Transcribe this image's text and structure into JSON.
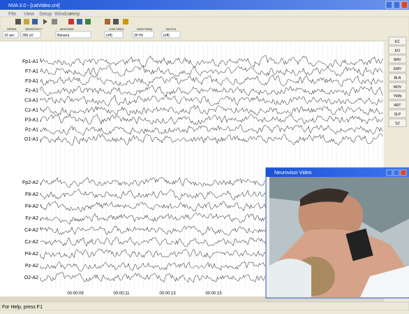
{
  "window": {
    "title": "NVA 3.0 - [catVideo.cnt]"
  },
  "menu": [
    "File",
    "View",
    "Setup",
    "Window",
    "Help"
  ],
  "toolbar": {
    "labels": [
      "SPEED",
      "SENSITIVITY",
      "MONTAGE",
      "LOW FREQ",
      "HIGH FREQ",
      "NOTCH"
    ],
    "values": [
      "15 sec",
      "300 uV",
      "Banana",
      "(off)",
      "30 Hz",
      "(off)"
    ]
  },
  "channels": {
    "left": [
      "Fp1-A1",
      "F7-A1",
      "F3-A1",
      "Fz-A1",
      "C3-A1",
      "Cz-A1",
      "P3-A1",
      "Pz-A1",
      "O1-A1"
    ],
    "right": [
      "Fp2-A2",
      "F8-A2",
      "F4-A2",
      "Fz-A2",
      "C4-A2",
      "Cz-A2",
      "P4-A2",
      "Pz-A2",
      "O2-A2"
    ]
  },
  "times": [
    "00:00:09",
    "00:00:11",
    "00:00:13",
    "00:00:15"
  ],
  "events": [
    "EC",
    "EO",
    "BHV",
    "EMV",
    "BLN",
    "MOV",
    "YWN",
    "ART",
    "SLP",
    "SZ"
  ],
  "video": {
    "title": "Neurovisor Video"
  },
  "status": "For Help, press F1"
}
